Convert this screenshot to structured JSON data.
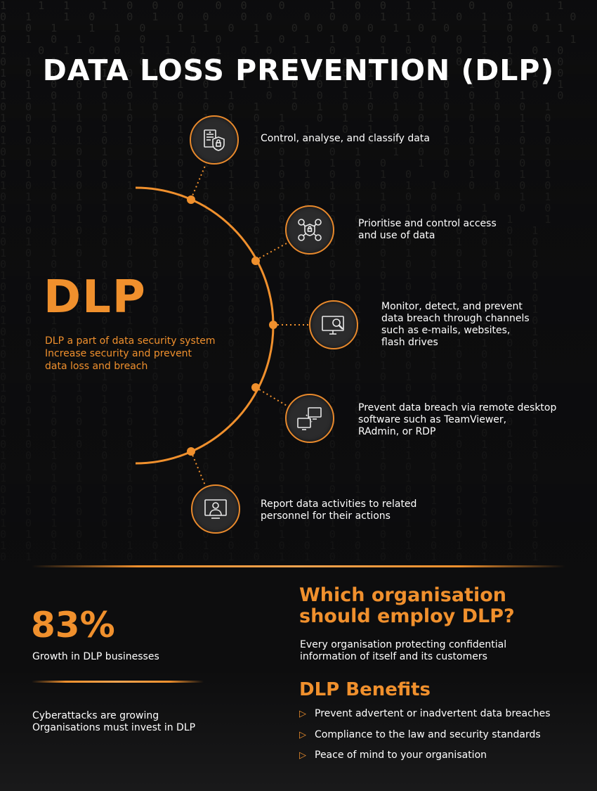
{
  "title": "DATA LOSS PREVENTION (DLP)",
  "dlp": {
    "heading": "DLP",
    "description": [
      "DLP a part of data security system",
      "Increase security and prevent",
      "data loss and breach"
    ]
  },
  "items": [
    {
      "icon": "data-shield-icon",
      "lines": [
        "Control, analyse, and classify data"
      ]
    },
    {
      "icon": "access-network-icon",
      "lines": [
        "Prioritise and control access",
        "and use of data"
      ]
    },
    {
      "icon": "monitor-search-icon",
      "lines": [
        "Monitor, detect, and prevent",
        "data breach through channels",
        "such as e-mails, websites,",
        "flash drives"
      ]
    },
    {
      "icon": "remote-desktop-icon",
      "lines": [
        "Prevent data breach via remote desktop",
        "software such as TeamViewer,",
        "RAdmin, or RDP"
      ]
    },
    {
      "icon": "user-report-icon",
      "lines": [
        "Report data activities to related",
        "personnel for their actions"
      ]
    }
  ],
  "stat": {
    "value": "83%",
    "label": "Growth in DLP businesses"
  },
  "cyber": [
    "Cyberattacks are growing",
    "Organisations must invest in DLP"
  ],
  "which": {
    "title": [
      "Which organisation",
      "should employ DLP?"
    ],
    "body": [
      "Every organisation protecting confidential",
      "information of itself and its customers"
    ]
  },
  "benefits": {
    "title": "DLP Benefits",
    "items": [
      "Prevent advertent or inadvertent data breaches",
      "Compliance to the law and security standards",
      "Peace of mind to your organisation"
    ]
  },
  "colors": {
    "accent": "#f0902d",
    "background": "#0d0d0e"
  }
}
